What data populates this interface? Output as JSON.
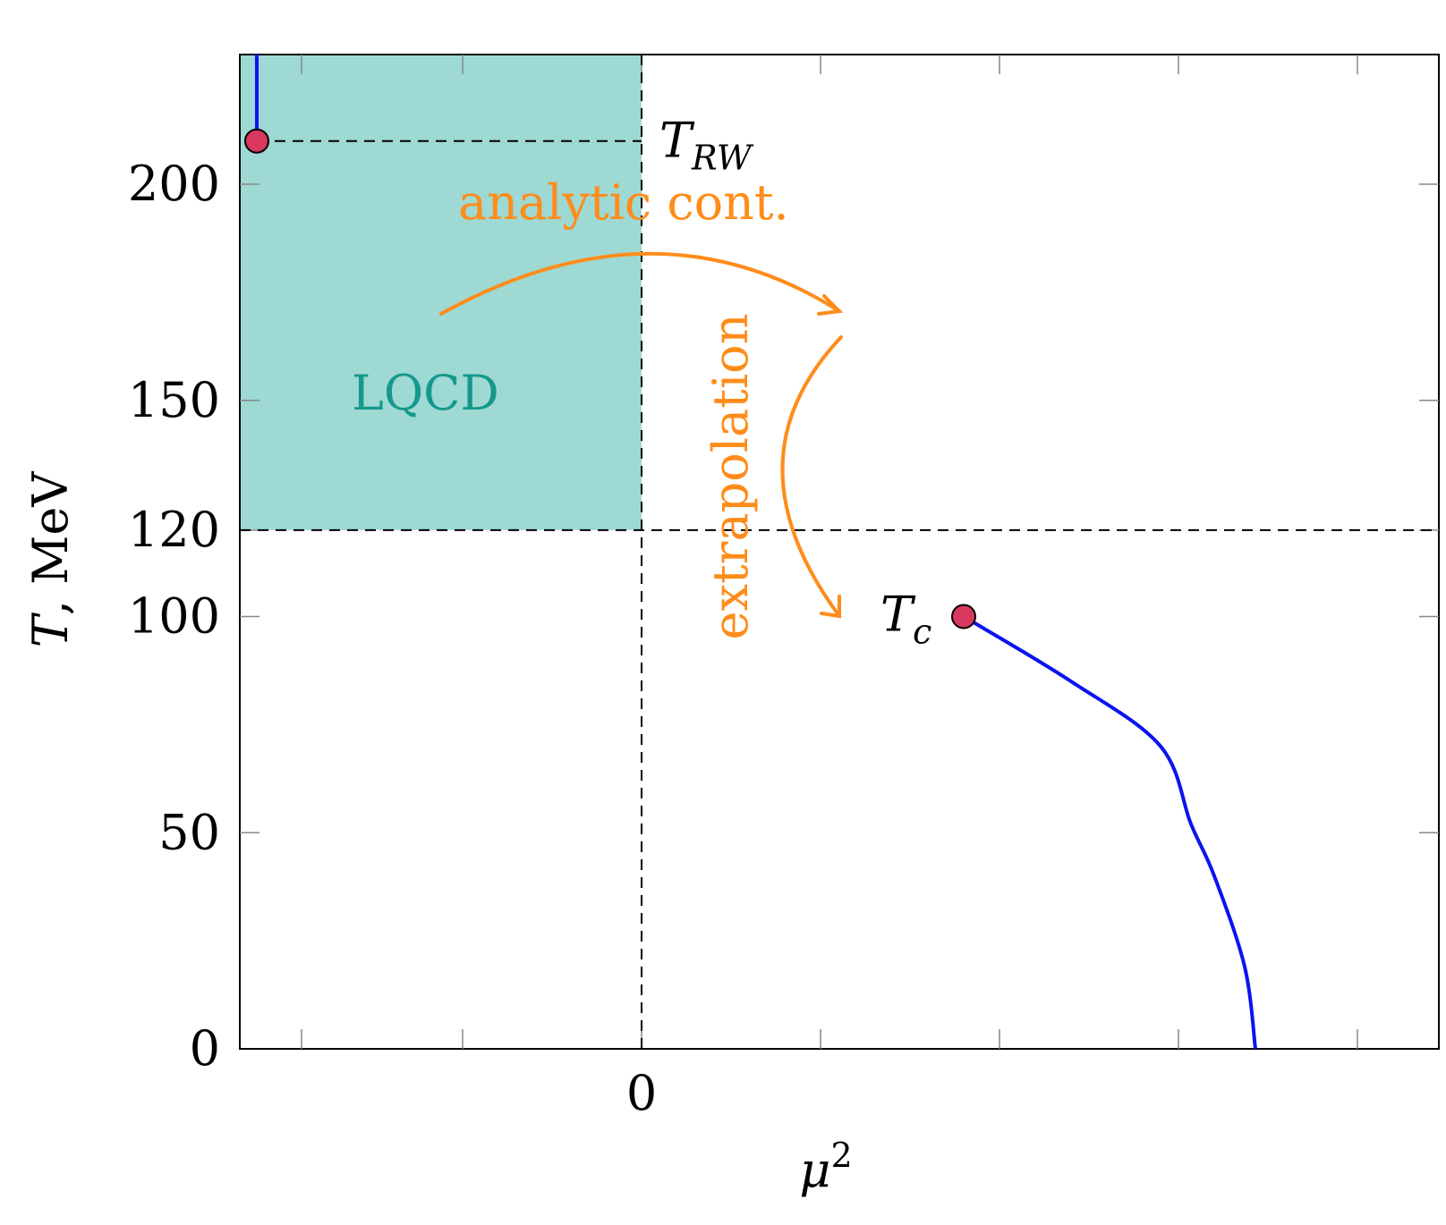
{
  "chart_data": {
    "type": "line",
    "xlabel_base": "μ",
    "xlabel_sup": "2",
    "ylabel_var": "T",
    "ylabel_unit": ", MeV",
    "ylim": [
      0,
      230
    ],
    "y_ticks": [
      0,
      50,
      100,
      120,
      150,
      200
    ],
    "y_tick_labels": [
      "0",
      "50",
      "100",
      "120",
      "150",
      "200"
    ],
    "x_ticks": [
      0
    ],
    "x_tick_labels": [
      "0"
    ],
    "colors": {
      "region": "#9ed9d3",
      "region_label": "#14998c",
      "curve": "#0a14f0",
      "point": "#d9385e",
      "arrow": "#ff8c1a"
    },
    "regions": [
      {
        "name": "lattice-region",
        "label": "LQCD",
        "x": [
          -2.25,
          0
        ],
        "y": [
          120,
          230
        ]
      }
    ],
    "reference_lines": [
      {
        "axis": "x",
        "value": 0
      },
      {
        "axis": "y",
        "value": 120
      }
    ],
    "curves": [
      {
        "name": "rw-line",
        "points": [
          [
            -2.15,
            210
          ],
          [
            -2.15,
            230
          ]
        ]
      },
      {
        "name": "transition-line",
        "points": [
          [
            1.8,
            100
          ],
          [
            2.4,
            85
          ],
          [
            2.9,
            70
          ],
          [
            3.07,
            52
          ],
          [
            3.2,
            40
          ],
          [
            3.37,
            19
          ],
          [
            3.43,
            0
          ]
        ]
      }
    ],
    "points": [
      {
        "name": "t-rw-point",
        "label_base": "T",
        "label_sub": "RW",
        "x": -2.15,
        "y": 210
      },
      {
        "name": "t-c-point",
        "label_base": "T",
        "label_sub": "c",
        "x": 1.8,
        "y": 100
      }
    ],
    "annotations": {
      "analytic": "analytic cont.",
      "extrapolation": "extrapolation"
    }
  }
}
